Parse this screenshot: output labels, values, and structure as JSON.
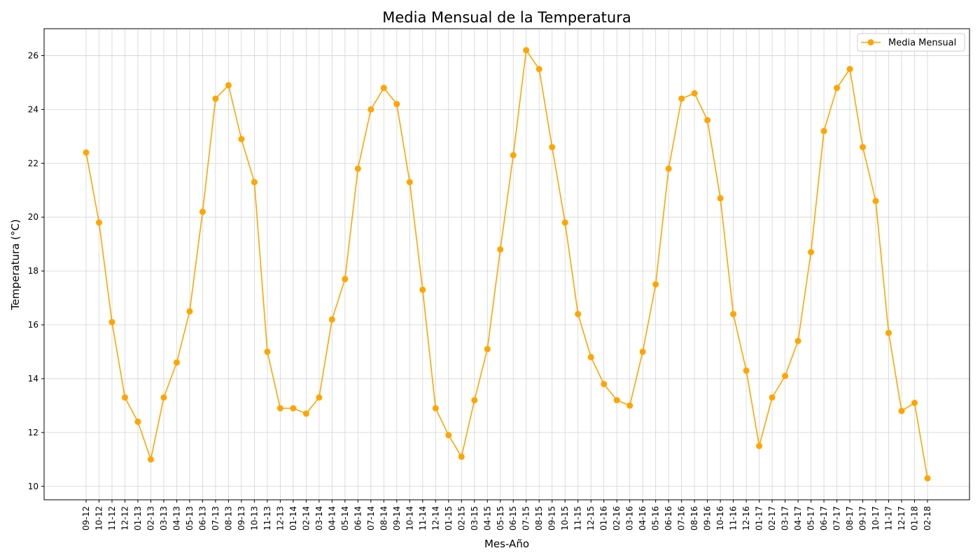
{
  "chart_data": {
    "type": "line",
    "title": "Media Mensual de la Temperatura",
    "xlabel": "Mes-Año",
    "ylabel": "Temperatura (°C)",
    "ylim": [
      9.5,
      27
    ],
    "yticks": [
      10,
      12,
      14,
      16,
      18,
      20,
      22,
      24,
      26
    ],
    "grid": true,
    "legend_position": "top-right",
    "colors": {
      "series": "#FFA500",
      "grid": "#d3d3d3",
      "axis": "#000000"
    },
    "categories": [
      "09-12",
      "10-12",
      "11-12",
      "12-12",
      "01-13",
      "02-13",
      "03-13",
      "04-13",
      "05-13",
      "06-13",
      "07-13",
      "08-13",
      "09-13",
      "10-13",
      "11-13",
      "12-13",
      "01-14",
      "02-14",
      "03-14",
      "04-14",
      "05-14",
      "06-14",
      "07-14",
      "08-14",
      "09-14",
      "10-14",
      "11-14",
      "12-14",
      "01-15",
      "02-15",
      "03-15",
      "04-15",
      "05-15",
      "06-15",
      "07-15",
      "08-15",
      "09-15",
      "10-15",
      "11-15",
      "12-15",
      "01-16",
      "02-16",
      "03-16",
      "04-16",
      "05-16",
      "06-16",
      "07-16",
      "08-16",
      "09-16",
      "10-16",
      "11-16",
      "12-16",
      "01-17",
      "02-17",
      "03-17",
      "04-17",
      "05-17",
      "06-17",
      "07-17",
      "08-17",
      "09-17",
      "10-17",
      "11-17",
      "12-17",
      "01-18",
      "02-18"
    ],
    "series": [
      {
        "name": "Media Mensual",
        "values": [
          22.4,
          19.8,
          16.1,
          13.3,
          12.4,
          11.0,
          13.3,
          14.6,
          16.5,
          20.2,
          24.4,
          24.9,
          22.9,
          21.3,
          15.0,
          12.9,
          12.9,
          12.7,
          13.3,
          16.2,
          17.7,
          21.8,
          24.0,
          24.8,
          24.2,
          21.3,
          17.3,
          12.9,
          11.9,
          11.1,
          13.2,
          15.1,
          18.8,
          22.3,
          26.2,
          25.5,
          22.6,
          19.8,
          16.4,
          14.8,
          13.8,
          13.2,
          13.0,
          15.0,
          17.5,
          21.8,
          24.4,
          24.6,
          23.6,
          20.7,
          16.4,
          14.3,
          11.5,
          13.3,
          14.1,
          15.4,
          18.7,
          23.2,
          24.8,
          25.5,
          22.6,
          20.6,
          15.7,
          12.8,
          13.1,
          10.3
        ]
      }
    ]
  }
}
